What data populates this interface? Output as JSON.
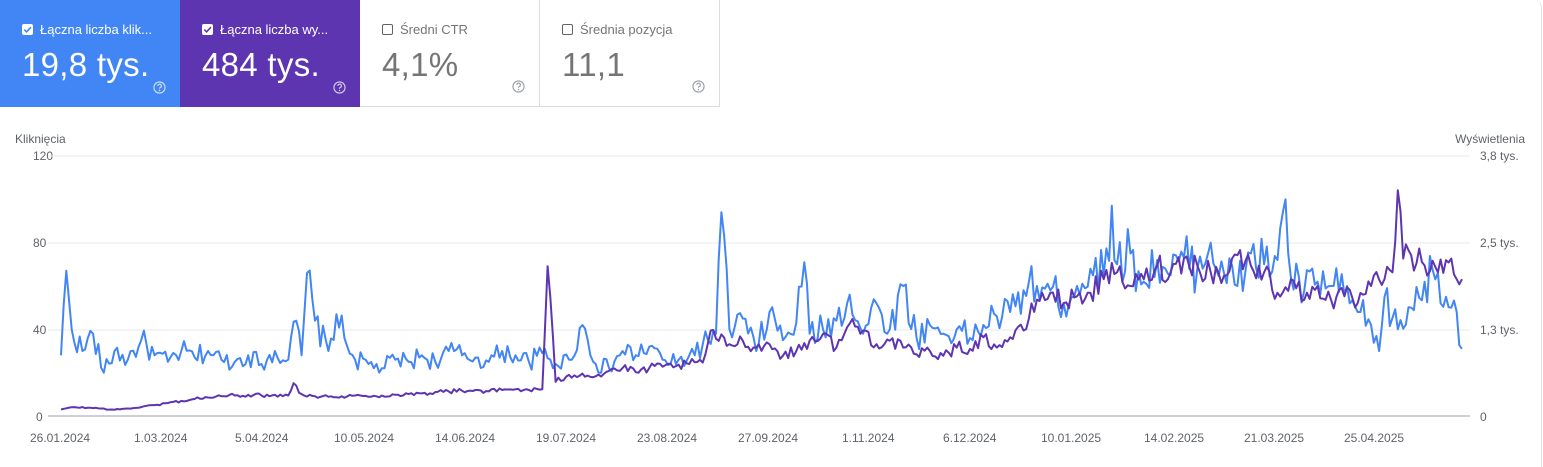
{
  "metrics": [
    {
      "label": "Łączna liczba klik...",
      "value": "19,8 tys.",
      "checked": true,
      "color": "#4285f4"
    },
    {
      "label": "Łączna liczba wy...",
      "value": "484 tys.",
      "checked": true,
      "color": "#5e35b1"
    },
    {
      "label": "Średni CTR",
      "value": "4,1%",
      "checked": false,
      "color": "#ffffff"
    },
    {
      "label": "Średnia pozycja",
      "value": "11,1",
      "checked": false,
      "color": "#ffffff"
    }
  ],
  "chart_data": {
    "type": "line",
    "left_axis_label": "Kliknięcia",
    "right_axis_label": "Wyświetlenia",
    "left_ticks": [
      "120",
      "80",
      "40",
      "0"
    ],
    "right_ticks": [
      "3,8 tys.",
      "2,5 tys.",
      "1,3 tys.",
      "0"
    ],
    "left_ylim": [
      0,
      120
    ],
    "right_ylim": [
      0,
      3800
    ],
    "x_ticks": [
      "26.01.2024",
      "1.03.2024",
      "5.04.2024",
      "10.05.2024",
      "14.06.2024",
      "19.07.2024",
      "23.08.2024",
      "27.09.2024",
      "1.11.2024",
      "6.12.2024",
      "10.01.2025",
      "14.02.2025",
      "21.03.2025",
      "25.04.2025"
    ],
    "x_range": [
      "26.01.2024",
      "29.05.2025"
    ],
    "grid": "horizontal",
    "series": [
      {
        "name": "Łączna liczba kliknięć",
        "axis": "left",
        "color": "#4285f4",
        "knots": [
          [
            0,
            28
          ],
          [
            2,
            67
          ],
          [
            4,
            40
          ],
          [
            8,
            30
          ],
          [
            12,
            38
          ],
          [
            16,
            20
          ],
          [
            20,
            30
          ],
          [
            25,
            26
          ],
          [
            30,
            35
          ],
          [
            35,
            28
          ],
          [
            40,
            25
          ],
          [
            45,
            30
          ],
          [
            50,
            27
          ],
          [
            55,
            30
          ],
          [
            60,
            26
          ],
          [
            65,
            25
          ],
          [
            70,
            28
          ],
          [
            75,
            24
          ],
          [
            80,
            30
          ],
          [
            85,
            26
          ],
          [
            88,
            44
          ],
          [
            90,
            28
          ],
          [
            92,
            66
          ],
          [
            95,
            44
          ],
          [
            100,
            30
          ],
          [
            103,
            47
          ],
          [
            106,
            36
          ],
          [
            110,
            26
          ],
          [
            115,
            24
          ],
          [
            120,
            22
          ],
          [
            125,
            26
          ],
          [
            130,
            25
          ],
          [
            135,
            28
          ],
          [
            140,
            25
          ],
          [
            145,
            30
          ],
          [
            150,
            28
          ],
          [
            155,
            27
          ],
          [
            160,
            25
          ],
          [
            165,
            30
          ],
          [
            170,
            28
          ],
          [
            175,
            25
          ],
          [
            180,
            29
          ],
          [
            185,
            24
          ],
          [
            190,
            26
          ],
          [
            195,
            42
          ],
          [
            200,
            24
          ],
          [
            205,
            22
          ],
          [
            210,
            30
          ],
          [
            215,
            28
          ],
          [
            220,
            32
          ],
          [
            225,
            26
          ],
          [
            230,
            24
          ],
          [
            235,
            28
          ],
          [
            240,
            33
          ],
          [
            245,
            38
          ],
          [
            247,
            94
          ],
          [
            250,
            40
          ],
          [
            255,
            45
          ],
          [
            260,
            30
          ],
          [
            265,
            48
          ],
          [
            270,
            35
          ],
          [
            275,
            43
          ],
          [
            278,
            71
          ],
          [
            280,
            38
          ],
          [
            285,
            40
          ],
          [
            290,
            44
          ],
          [
            295,
            56
          ],
          [
            300,
            38
          ],
          [
            305,
            52
          ],
          [
            310,
            40
          ],
          [
            315,
            60
          ],
          [
            320,
            36
          ],
          [
            325,
            42
          ],
          [
            330,
            38
          ],
          [
            335,
            40
          ],
          [
            340,
            36
          ],
          [
            345,
            42
          ],
          [
            350,
            46
          ],
          [
            355,
            48
          ],
          [
            360,
            58
          ],
          [
            365,
            60
          ],
          [
            370,
            58
          ],
          [
            375,
            52
          ],
          [
            380,
            60
          ],
          [
            385,
            68
          ],
          [
            390,
            65
          ],
          [
            393,
            97
          ],
          [
            395,
            70
          ],
          [
            400,
            75
          ],
          [
            405,
            62
          ],
          [
            410,
            72
          ],
          [
            415,
            65
          ],
          [
            420,
            73
          ],
          [
            425,
            68
          ],
          [
            430,
            80
          ],
          [
            435,
            66
          ],
          [
            440,
            60
          ],
          [
            445,
            75
          ],
          [
            450,
            70
          ],
          [
            455,
            72
          ],
          [
            458,
            100
          ],
          [
            460,
            64
          ],
          [
            465,
            58
          ],
          [
            470,
            62
          ],
          [
            475,
            60
          ],
          [
            480,
            56
          ],
          [
            485,
            48
          ],
          [
            490,
            42
          ],
          [
            493,
            30
          ],
          [
            495,
            55
          ],
          [
            500,
            40
          ],
          [
            505,
            50
          ],
          [
            510,
            62
          ],
          [
            515,
            66
          ],
          [
            518,
            55
          ],
          [
            520,
            50
          ],
          [
            522,
            48
          ],
          [
            524,
            31
          ]
        ]
      },
      {
        "name": "Łączna liczba wyświetleń",
        "axis": "right",
        "color": "#5e35b1",
        "knots": [
          [
            0,
            95
          ],
          [
            5,
            130
          ],
          [
            10,
            120
          ],
          [
            15,
            110
          ],
          [
            20,
            90
          ],
          [
            25,
            110
          ],
          [
            30,
            130
          ],
          [
            35,
            160
          ],
          [
            40,
            190
          ],
          [
            45,
            220
          ],
          [
            50,
            250
          ],
          [
            55,
            270
          ],
          [
            60,
            290
          ],
          [
            65,
            300
          ],
          [
            70,
            310
          ],
          [
            75,
            300
          ],
          [
            80,
            310
          ],
          [
            85,
            300
          ],
          [
            87,
            480
          ],
          [
            90,
            320
          ],
          [
            95,
            290
          ],
          [
            100,
            280
          ],
          [
            105,
            290
          ],
          [
            110,
            300
          ],
          [
            115,
            280
          ],
          [
            120,
            300
          ],
          [
            125,
            310
          ],
          [
            130,
            320
          ],
          [
            135,
            330
          ],
          [
            140,
            350
          ],
          [
            145,
            360
          ],
          [
            150,
            370
          ],
          [
            155,
            380
          ],
          [
            160,
            360
          ],
          [
            165,
            380
          ],
          [
            170,
            390
          ],
          [
            175,
            380
          ],
          [
            180,
            390
          ],
          [
            182,
            2190
          ],
          [
            185,
            500
          ],
          [
            190,
            600
          ],
          [
            195,
            620
          ],
          [
            200,
            580
          ],
          [
            205,
            660
          ],
          [
            210,
            700
          ],
          [
            215,
            640
          ],
          [
            220,
            700
          ],
          [
            225,
            720
          ],
          [
            230,
            730
          ],
          [
            235,
            760
          ],
          [
            240,
            780
          ],
          [
            243,
            1250
          ],
          [
            245,
            1130
          ],
          [
            250,
            1050
          ],
          [
            255,
            1100
          ],
          [
            260,
            1000
          ],
          [
            265,
            1050
          ],
          [
            270,
            880
          ],
          [
            275,
            950
          ],
          [
            280,
            1100
          ],
          [
            285,
            1200
          ],
          [
            290,
            1000
          ],
          [
            295,
            1350
          ],
          [
            300,
            1250
          ],
          [
            305,
            1050
          ],
          [
            310,
            1100
          ],
          [
            315,
            1000
          ],
          [
            320,
            900
          ],
          [
            325,
            950
          ],
          [
            330,
            880
          ],
          [
            335,
            1000
          ],
          [
            340,
            980
          ],
          [
            345,
            1150
          ],
          [
            350,
            1000
          ],
          [
            355,
            1150
          ],
          [
            360,
            1250
          ],
          [
            365,
            1700
          ],
          [
            370,
            1800
          ],
          [
            375,
            1650
          ],
          [
            380,
            1750
          ],
          [
            385,
            1800
          ],
          [
            390,
            2000
          ],
          [
            395,
            2100
          ],
          [
            400,
            1900
          ],
          [
            405,
            2000
          ],
          [
            410,
            2200
          ],
          [
            415,
            2100
          ],
          [
            420,
            2300
          ],
          [
            425,
            2200
          ],
          [
            430,
            2100
          ],
          [
            435,
            2050
          ],
          [
            440,
            2350
          ],
          [
            445,
            2200
          ],
          [
            450,
            2100
          ],
          [
            455,
            1800
          ],
          [
            460,
            2000
          ],
          [
            465,
            1700
          ],
          [
            470,
            1900
          ],
          [
            475,
            1700
          ],
          [
            480,
            1750
          ],
          [
            485,
            1650
          ],
          [
            490,
            1900
          ],
          [
            495,
            2000
          ],
          [
            498,
            2100
          ],
          [
            500,
            3300
          ],
          [
            502,
            2300
          ],
          [
            505,
            2350
          ],
          [
            510,
            2200
          ],
          [
            515,
            2100
          ],
          [
            520,
            2300
          ],
          [
            522,
            2000
          ],
          [
            524,
            2000
          ]
        ]
      }
    ]
  }
}
